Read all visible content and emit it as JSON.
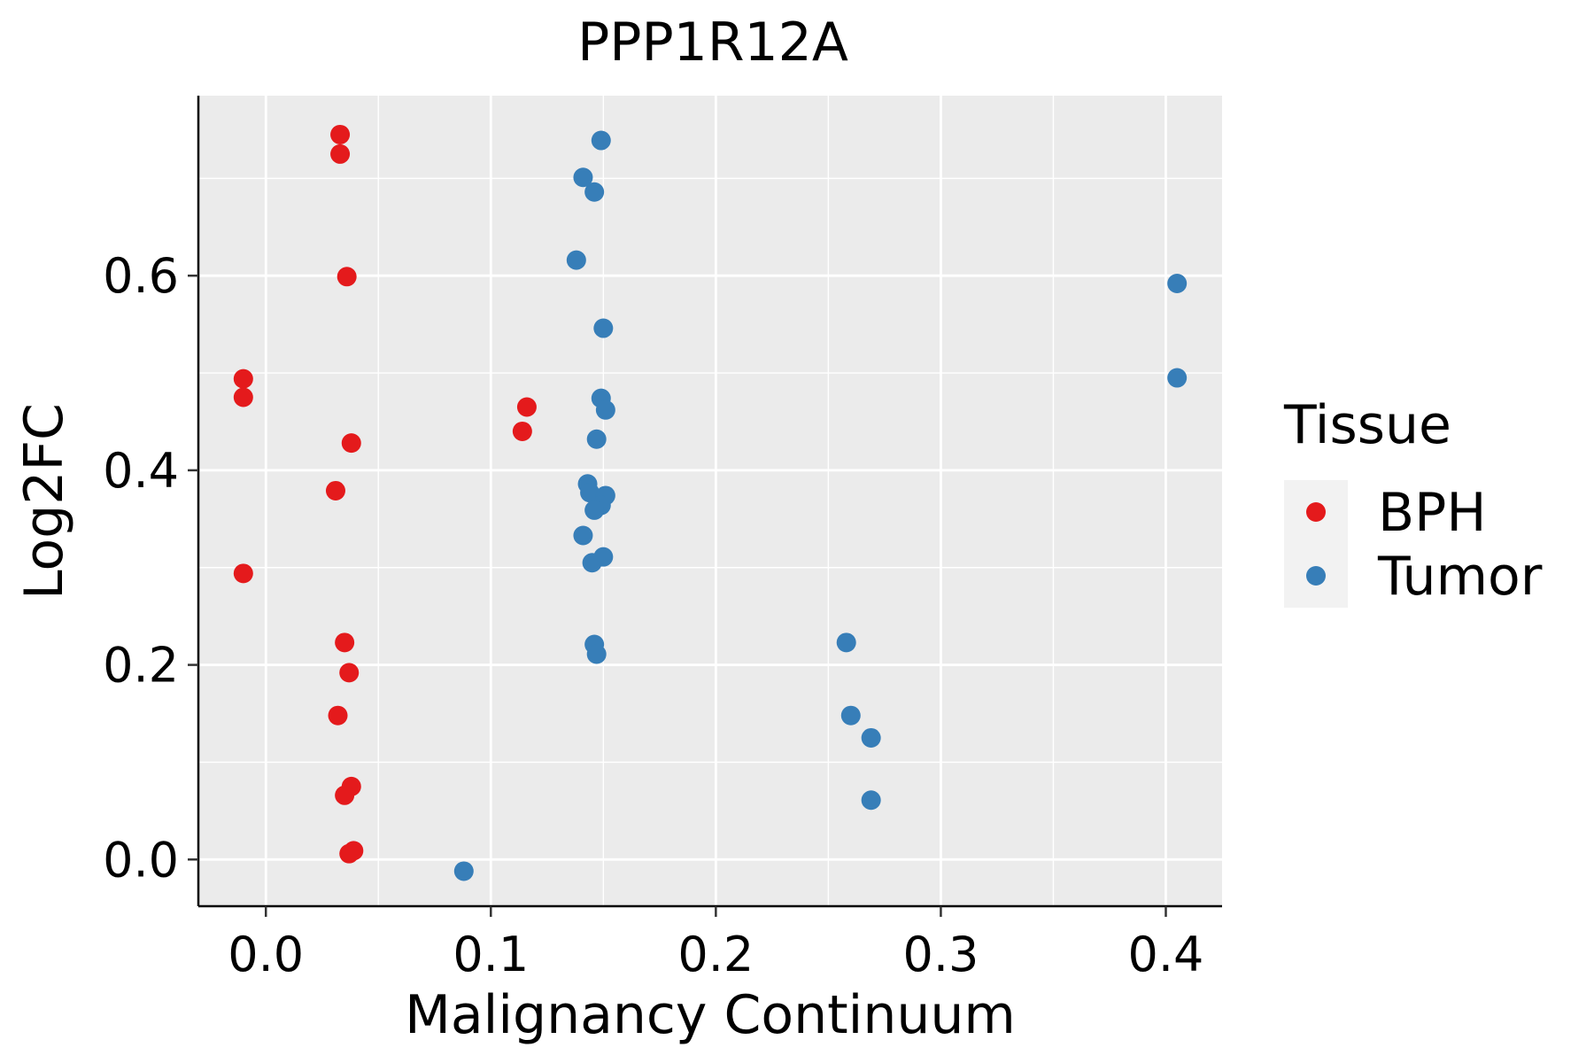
{
  "chart_data": {
    "type": "scatter",
    "title": "PPP1R12A",
    "xlabel": "Malignancy Continuum",
    "ylabel": "Log2FC",
    "xlim": [
      -0.03,
      0.425
    ],
    "ylim": [
      -0.048,
      0.785
    ],
    "x_ticks": [
      0.0,
      0.1,
      0.2,
      0.3,
      0.4
    ],
    "x_tick_labels": [
      "0.0",
      "0.1",
      "0.2",
      "0.3",
      "0.4"
    ],
    "y_ticks": [
      0.0,
      0.2,
      0.4,
      0.6
    ],
    "y_tick_labels": [
      "0.0",
      "0.2",
      "0.4",
      "0.6"
    ],
    "grid": true,
    "background": "#EBEBEB",
    "legend": {
      "title": "Tissue",
      "position": "right",
      "entries": [
        {
          "label": "BPH",
          "color": "#E41A1C"
        },
        {
          "label": "Tumor",
          "color": "#377EB8"
        }
      ]
    },
    "series": [
      {
        "name": "BPH",
        "color": "#E41A1C",
        "x": [
          0.033,
          0.033,
          0.036,
          -0.01,
          -0.01,
          0.038,
          0.031,
          -0.01,
          0.035,
          0.037,
          0.032,
          0.038,
          0.035,
          0.039,
          0.037,
          0.116,
          0.114
        ],
        "y": [
          0.745,
          0.725,
          0.599,
          0.494,
          0.475,
          0.428,
          0.379,
          0.294,
          0.223,
          0.192,
          0.148,
          0.075,
          0.066,
          0.009,
          0.006,
          0.465,
          0.44
        ]
      },
      {
        "name": "Tumor",
        "color": "#377EB8",
        "x": [
          0.149,
          0.141,
          0.146,
          0.138,
          0.15,
          0.149,
          0.151,
          0.147,
          0.143,
          0.144,
          0.151,
          0.149,
          0.146,
          0.141,
          0.15,
          0.145,
          0.146,
          0.147,
          0.088,
          0.258,
          0.26,
          0.269,
          0.269,
          0.405,
          0.405
        ],
        "y": [
          0.739,
          0.701,
          0.686,
          0.616,
          0.546,
          0.474,
          0.462,
          0.432,
          0.386,
          0.377,
          0.374,
          0.364,
          0.359,
          0.333,
          0.311,
          0.305,
          0.221,
          0.211,
          -0.012,
          0.223,
          0.148,
          0.125,
          0.061,
          0.592,
          0.495
        ]
      }
    ]
  }
}
